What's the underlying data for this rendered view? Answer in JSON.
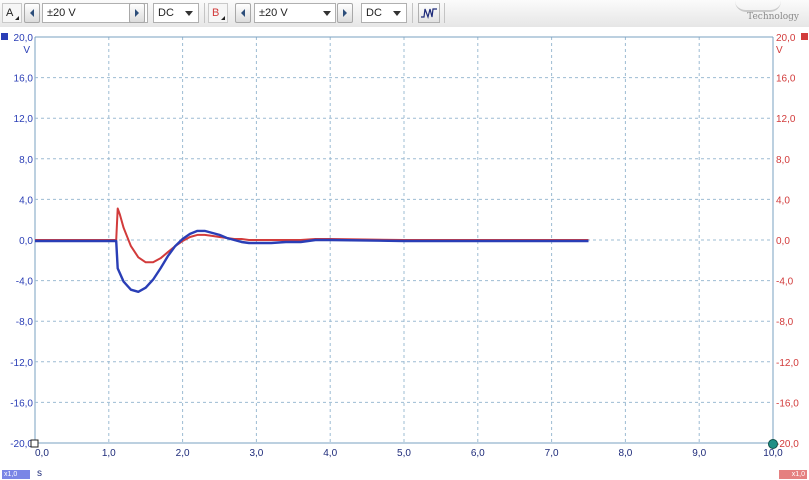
{
  "toolbar": {
    "channel_a": {
      "label": "A",
      "range": "±20 V",
      "coupling": "DC",
      "color": "#2a3eb6"
    },
    "channel_b": {
      "label": "B",
      "range": "±20 V",
      "coupling": "DC",
      "color": "#d23b3b"
    },
    "trigger_icon": "trigger-waveform-icon",
    "brand_text": "Technology"
  },
  "axes": {
    "left_unit": "V",
    "right_unit": "V",
    "x_unit": "s",
    "left_scale": "x1,0",
    "right_scale": "x1,0",
    "y_tick_labels": [
      "20,0",
      "16,0",
      "12,0",
      "8,0",
      "4,0",
      "0,0",
      "-4,0",
      "-8,0",
      "-12,0",
      "-16,0",
      "-20,0"
    ],
    "x_tick_labels": [
      "0,0",
      "1,0",
      "2,0",
      "3,0",
      "4,0",
      "5,0",
      "6,0",
      "7,0",
      "8,0",
      "9,0",
      "10,0"
    ]
  },
  "chart_data": {
    "type": "line",
    "title": "",
    "xlabel": "s",
    "ylabel": "V",
    "xlim": [
      0,
      10
    ],
    "ylim": [
      -20,
      20
    ],
    "grid": true,
    "series": [
      {
        "name": "A",
        "color": "#2a3eb6",
        "x": [
          0.0,
          1.1,
          1.12,
          1.2,
          1.3,
          1.4,
          1.5,
          1.6,
          1.7,
          1.8,
          1.9,
          2.0,
          2.1,
          2.2,
          2.3,
          2.4,
          2.5,
          2.6,
          2.7,
          2.8,
          2.9,
          3.0,
          3.2,
          3.4,
          3.6,
          3.7,
          3.8,
          4.0,
          5.0,
          6.0,
          7.0,
          7.5
        ],
        "y": [
          -0.1,
          -0.1,
          -2.8,
          -4.1,
          -4.9,
          -5.1,
          -4.7,
          -3.9,
          -2.8,
          -1.6,
          -0.6,
          0.1,
          0.6,
          0.9,
          0.9,
          0.7,
          0.5,
          0.2,
          0.0,
          -0.2,
          -0.3,
          -0.3,
          -0.3,
          -0.2,
          -0.2,
          -0.1,
          0.0,
          0.0,
          -0.1,
          -0.1,
          -0.1,
          -0.1
        ]
      },
      {
        "name": "B",
        "color": "#d23b3b",
        "x": [
          0.0,
          1.1,
          1.12,
          1.15,
          1.2,
          1.3,
          1.4,
          1.5,
          1.6,
          1.7,
          1.8,
          1.9,
          2.0,
          2.1,
          2.2,
          2.3,
          2.4,
          2.5,
          2.6,
          2.7,
          2.8,
          2.9,
          3.0,
          3.2,
          3.4,
          3.6,
          3.8,
          4.0,
          5.0,
          6.0,
          7.0,
          7.5
        ],
        "y": [
          0.0,
          0.0,
          3.1,
          2.5,
          1.2,
          -0.6,
          -1.7,
          -2.2,
          -2.2,
          -1.8,
          -1.2,
          -0.6,
          -0.1,
          0.3,
          0.5,
          0.5,
          0.4,
          0.3,
          0.2,
          0.1,
          0.1,
          0.0,
          0.0,
          0.0,
          0.0,
          0.0,
          0.1,
          0.1,
          0.0,
          0.0,
          0.0,
          0.0
        ]
      }
    ]
  }
}
